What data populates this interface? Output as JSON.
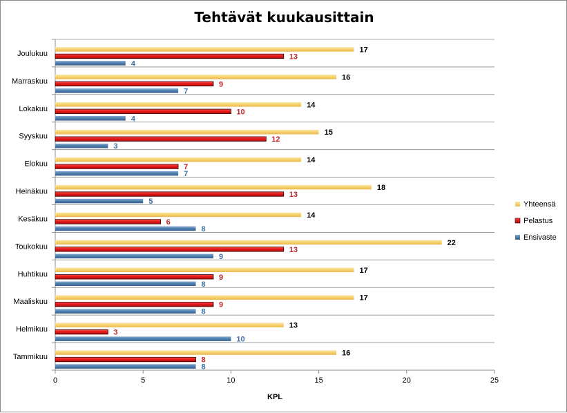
{
  "chart_data": {
    "type": "bar",
    "orientation": "horizontal",
    "title": "Tehtävät kuukausittain",
    "xlabel": "KPL",
    "ylabel": "",
    "xlim": [
      0,
      25
    ],
    "xticks": [
      0,
      5,
      10,
      15,
      20,
      25
    ],
    "grid": true,
    "legend_position": "right",
    "categories": [
      "Tammikuu",
      "Helmikuu",
      "Maaliskuu",
      "Huhtikuu",
      "Toukokuu",
      "Kesäkuu",
      "Heinäkuu",
      "Elokuu",
      "Syyskuu",
      "Lokakuu",
      "Marraskuu",
      "Joulukuu"
    ],
    "series": [
      {
        "name": "Ensivaste",
        "color": "#4f7fae",
        "label_color": "#3e72a8",
        "values": [
          8,
          10,
          8,
          8,
          9,
          8,
          5,
          7,
          3,
          4,
          7,
          4
        ]
      },
      {
        "name": "Pelastus",
        "color": "#e01818",
        "label_color": "#c0282b",
        "values": [
          8,
          3,
          9,
          9,
          13,
          6,
          13,
          7,
          12,
          10,
          9,
          13
        ]
      },
      {
        "name": "Yhteensä",
        "color": "#f6d070",
        "label_color": "#000000",
        "values": [
          16,
          13,
          17,
          17,
          22,
          14,
          18,
          14,
          15,
          14,
          16,
          17
        ]
      }
    ],
    "legend_order": [
      "Yhteensä",
      "Pelastus",
      "Ensivaste"
    ]
  }
}
